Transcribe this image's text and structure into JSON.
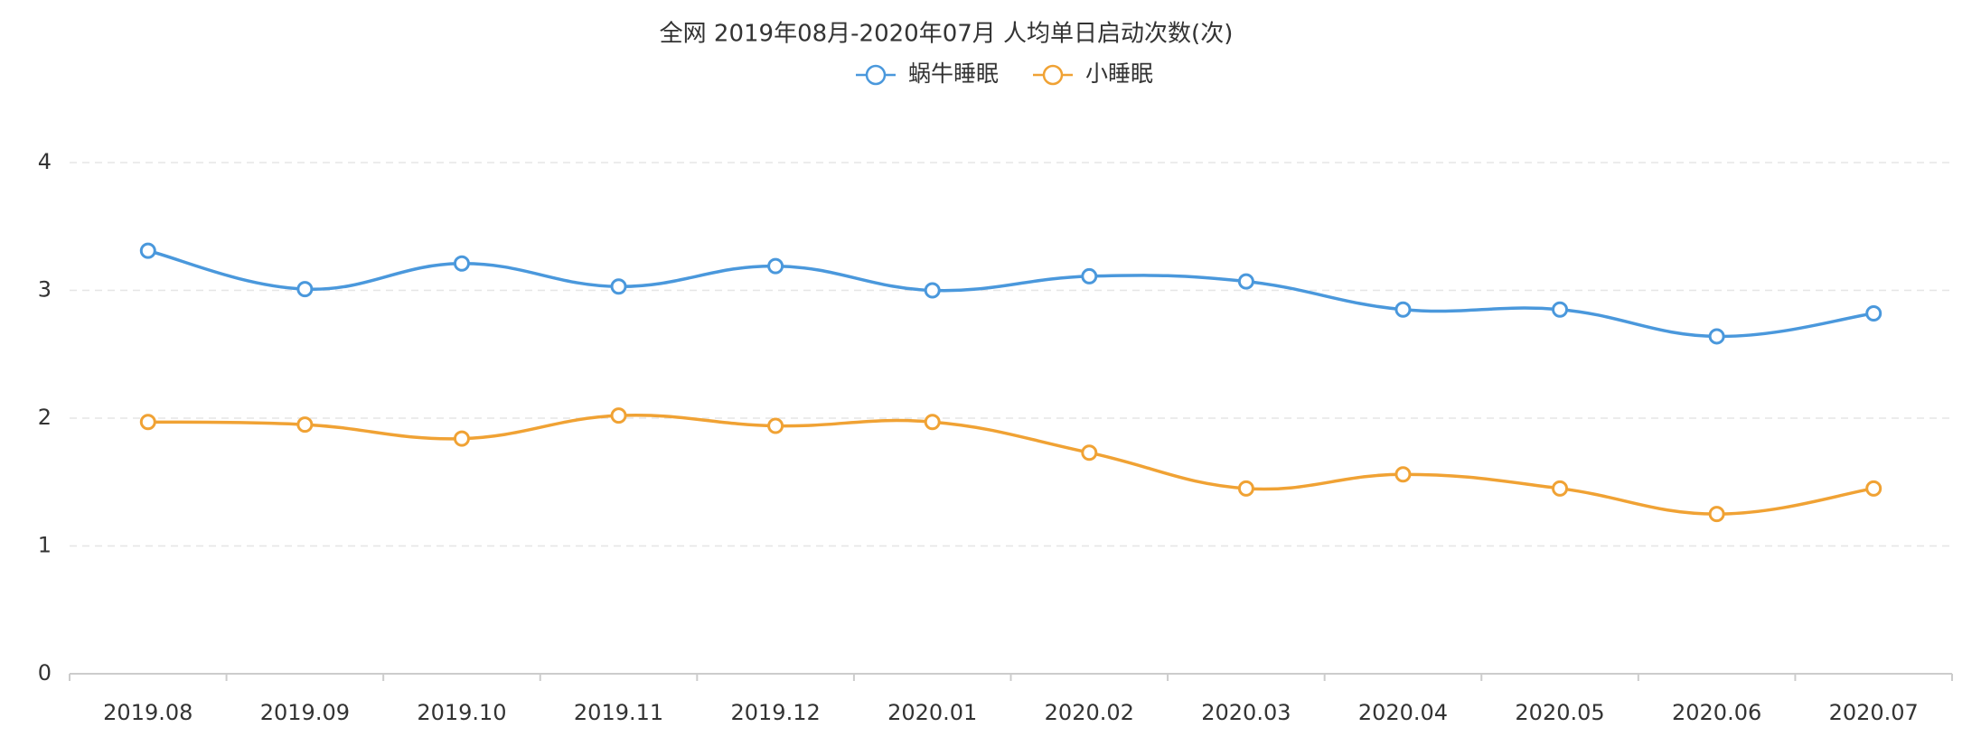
{
  "chart_data": {
    "type": "line",
    "title": "全网 2019年08月-2020年07月 人均单日启动次数(次)",
    "categories": [
      "2019.08",
      "2019.09",
      "2019.10",
      "2019.11",
      "2019.12",
      "2020.01",
      "2020.02",
      "2020.03",
      "2020.04",
      "2020.05",
      "2020.06",
      "2020.07"
    ],
    "series": [
      {
        "name": "蜗牛睡眠",
        "color": "#4a98dc",
        "values": [
          3.31,
          3.01,
          3.21,
          3.03,
          3.19,
          3.0,
          3.11,
          3.07,
          2.85,
          2.85,
          2.64,
          2.82
        ]
      },
      {
        "name": "小睡眠",
        "color": "#f0a234",
        "values": [
          1.97,
          1.95,
          1.84,
          2.02,
          1.94,
          1.97,
          1.73,
          1.45,
          1.56,
          1.45,
          1.25,
          1.45
        ]
      }
    ],
    "ylim": [
      0,
      4
    ],
    "yticks": [
      0,
      1,
      2,
      3,
      4
    ],
    "grid": true,
    "smooth": true,
    "legend": "top"
  }
}
